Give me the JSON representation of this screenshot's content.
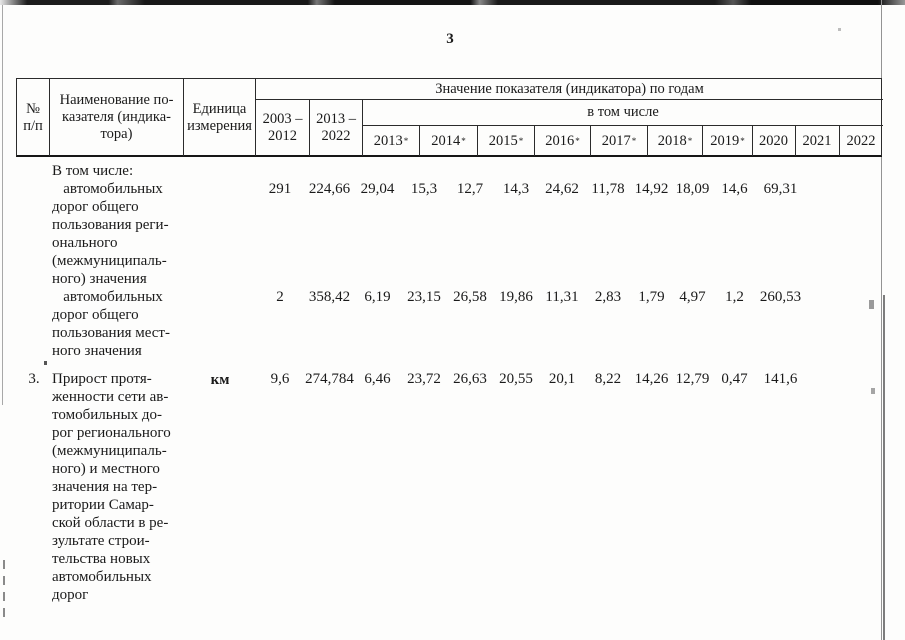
{
  "page": {
    "number": "3"
  },
  "table": {
    "header": {
      "col_num": "№\nп/п",
      "col_name": "Наименование по-\nказателя (индика-\nтора)",
      "col_unit": "Единица\nизмерения",
      "group_title": "Значение показателя (индикатора) по годам",
      "col_2003_2012": "2003 –\n2012",
      "col_2013_2022": "2013 –\n2022",
      "subgroup_title": "в том числе",
      "years": [
        {
          "label": "2013",
          "mark": "*"
        },
        {
          "label": "2014",
          "mark": "*"
        },
        {
          "label": "2015",
          "mark": "*"
        },
        {
          "label": "2016",
          "mark": "*"
        },
        {
          "label": "2017",
          "mark": "*"
        },
        {
          "label": "2018",
          "mark": "*"
        },
        {
          "label": "2019",
          "mark": "*"
        },
        {
          "label": "2020",
          "mark": ""
        },
        {
          "label": "2021",
          "mark": ""
        },
        {
          "label": "2022",
          "mark": ""
        }
      ]
    },
    "rows": [
      {
        "num": "",
        "name": "В том числе:\n   автомобильных\nдорог общего\nпользования реги-\nонального\n(межмуниципаль-\nного) значения",
        "unit": "",
        "values": [
          "291",
          "224,66",
          "29,04",
          "15,3",
          "12,7",
          "14,3",
          "24,62",
          "11,78",
          "14,92",
          "18,09",
          "14,6",
          "69,31"
        ]
      },
      {
        "num": "",
        "name": "   автомобильных\nдорог общего\nпользования мест-\nного значения",
        "unit": "",
        "values": [
          "2",
          "358,42",
          "6,19",
          "23,15",
          "26,58",
          "19,86",
          "11,31",
          "2,83",
          "1,79",
          "4,97",
          "1,2",
          "260,53"
        ]
      },
      {
        "num": "3.",
        "name": "Прирост протя-\nженности сети ав-\nтомобильных до-\nрог регионального\n(межмуниципаль-\nного) и местного\nзначения на тер-\nритории Самар-\nской области в ре-\nзультате строи-\nтельства новых\nавтомобильных\nдорог",
        "unit": "км",
        "values": [
          "9,6",
          "274,784",
          "6,46",
          "23,72",
          "26,63",
          "20,55",
          "20,1",
          "8,22",
          "14,26",
          "12,79",
          "0,47",
          "141,6"
        ]
      }
    ]
  }
}
